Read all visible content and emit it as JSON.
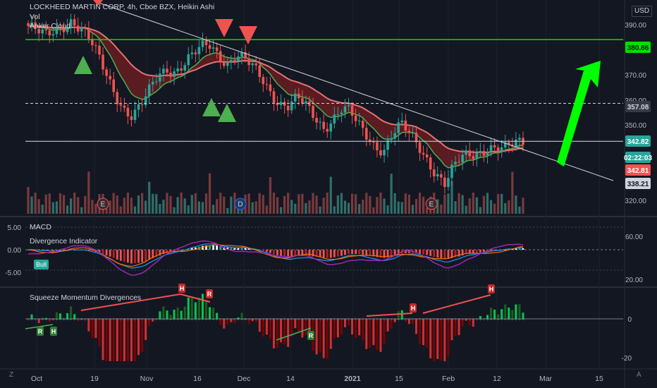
{
  "symbol_title": "LOCKHEED MARTIN CORP, 4h, Cboe BZX, Heikin Ashi",
  "main_legend": [
    "Vol",
    "Anker Cloud"
  ],
  "currency": "USD",
  "macd_legend": [
    "MACD",
    "Divergence Indicator"
  ],
  "sqz_legend": "Squeeze Momentum Divergences",
  "bull_label": "Bull",
  "zone_icon": "Z",
  "auto_icon": "A",
  "price_axis": [
    "390.00",
    "370.00",
    "360.00",
    "350.00",
    "320.00"
  ],
  "macd_axis_left": [
    "5.00",
    "0.00",
    "-5.00"
  ],
  "macd_axis_right": [
    "60.00",
    "20.00"
  ],
  "sqz_axis": [
    "0",
    "-20"
  ],
  "price_tags": [
    {
      "text": "380.86",
      "bg": "#00e000",
      "fg": "#131722"
    },
    {
      "text": "357.08",
      "bg": "#363a45",
      "fg": "#d1d4dc"
    },
    {
      "text": "342.82",
      "bg": "#26a69a",
      "fg": "#ffffff"
    },
    {
      "text": "02:22:03",
      "bg": "#26a69a",
      "fg": "#ffffff"
    },
    {
      "text": "342.81",
      "bg": "#ef5350",
      "fg": "#ffffff"
    },
    {
      "text": "338.21",
      "bg": "#d1d4dc",
      "fg": "#131722"
    }
  ],
  "time_axis": [
    "Oct",
    "19",
    "Nov",
    "16",
    "Dec",
    "14",
    "2021",
    "15",
    "Feb",
    "12",
    "Mar",
    "15"
  ],
  "event_markers": [
    "E",
    "D",
    "E"
  ],
  "div_labels": [
    "R",
    "H",
    "H",
    "R",
    "H",
    "R",
    "H"
  ],
  "colors": {
    "bg": "#131722",
    "up": "#26a69a",
    "down": "#ef5350",
    "cloud_red": "#b22222",
    "cloud_green": "#2e7d32",
    "hline": "#00e000",
    "arrow": "#00ff00"
  },
  "chart_data": {
    "type": "candlestick",
    "price_levels": [
      380.86,
      357.08,
      342.82,
      338.21
    ],
    "last_price": 342.82,
    "ylim": [
      318,
      393
    ],
    "trendline": "descending from early Oct highs (~395) to Feb (~340)",
    "ha_close_approx": [
      386,
      383,
      381,
      384,
      387,
      389,
      385,
      380,
      374,
      368,
      362,
      356,
      352,
      355,
      361,
      368,
      371,
      370,
      372,
      374,
      377,
      379,
      376,
      373,
      375,
      372,
      369,
      366,
      362,
      358,
      356,
      358,
      355,
      352,
      349,
      352,
      355,
      353,
      348,
      345,
      342,
      341,
      346,
      348,
      344,
      341,
      337,
      332,
      327,
      332,
      336,
      338,
      340,
      342,
      340,
      339,
      341,
      342.8
    ],
    "macd_range": [
      -7,
      7
    ],
    "sqz_range": [
      -25,
      10
    ]
  }
}
